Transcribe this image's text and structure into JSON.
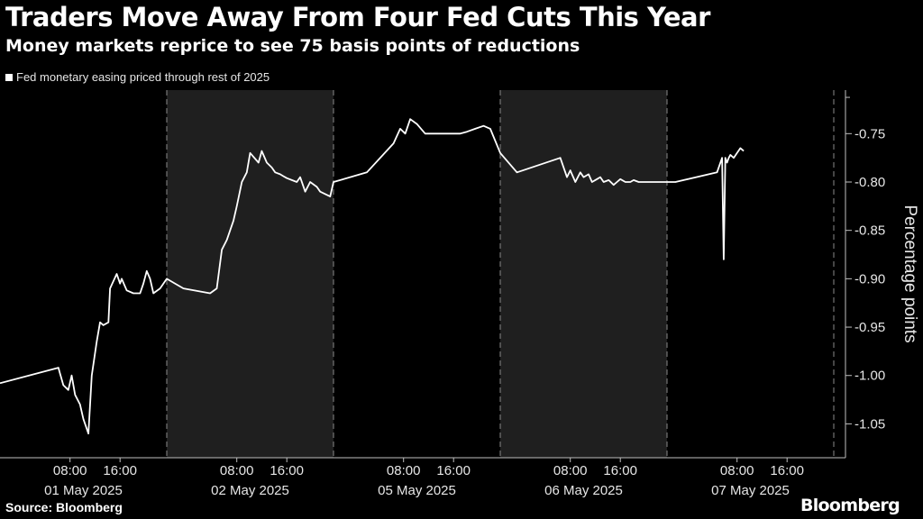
{
  "header": {
    "title": "Traders Move Away From Four Fed Cuts This Year",
    "subtitle": "Money markets reprice to see 75 basis points of reductions"
  },
  "footer": {
    "source": "Source: Bloomberg",
    "brand": "Bloomberg"
  },
  "colors": {
    "background": "#000000",
    "line": "#ffffff",
    "shade": "#1f1f1f"
  },
  "chart_data": {
    "type": "line",
    "title": "Traders Move Away From Four Fed Cuts This Year",
    "subtitle": "Money markets reprice to see 75 basis points of reductions",
    "xlabel": "",
    "ylabel": "Percentage points",
    "ylim": [
      -1.085,
      -0.705
    ],
    "y_ticks": [
      -0.75,
      -0.8,
      -0.85,
      -0.9,
      -0.95,
      -1.0,
      -1.05
    ],
    "y_tick_labels": [
      "-0.75",
      "-0.80",
      "-0.85",
      "-0.90",
      "-0.95",
      "-1.00",
      "-1.05"
    ],
    "y_axis_side": "right",
    "grid": "vertical dashed",
    "legend_position": "top-left",
    "day_labels": [
      "01 May 2025",
      "02 May 2025",
      "05 May 2025",
      "06 May 2025",
      "07 May 2025"
    ],
    "hour_labels": [
      "08:00",
      "16:00"
    ],
    "shaded_days": [
      "02 May 2025",
      "06 May 2025"
    ],
    "series": [
      {
        "name": "Fed monetary easing priced through rest of 2025",
        "x": [
          0.0,
          0.35,
          0.36,
          0.38,
          0.41,
          0.43,
          0.45,
          0.48,
          0.5,
          0.53,
          0.55,
          0.58,
          0.6,
          0.62,
          0.65,
          0.66,
          0.7,
          0.72,
          0.73,
          0.76,
          0.8,
          0.82,
          0.84,
          0.86,
          0.88,
          0.9,
          0.92,
          0.96,
          1.0,
          1.1,
          1.26,
          1.3,
          1.33,
          1.36,
          1.4,
          1.42,
          1.45,
          1.48,
          1.5,
          1.55,
          1.57,
          1.6,
          1.63,
          1.65,
          1.68,
          1.7,
          1.72,
          1.75,
          1.78,
          1.8,
          1.83,
          1.86,
          1.9,
          1.92,
          1.98,
          2.0,
          2.2,
          2.36,
          2.4,
          2.43,
          2.46,
          2.5,
          2.55,
          2.58,
          2.6,
          2.62,
          2.65,
          2.67,
          2.7,
          2.72,
          2.76,
          2.8,
          2.85,
          2.9,
          2.94,
          3.0,
          3.1,
          3.36,
          3.4,
          3.42,
          3.45,
          3.48,
          3.5,
          3.53,
          3.55,
          3.58,
          3.6,
          3.62,
          3.65,
          3.68,
          3.7,
          3.72,
          3.75,
          3.78,
          3.8,
          3.83,
          3.85,
          3.88,
          3.9,
          3.93,
          3.95,
          3.98,
          4.0,
          4.05,
          4.3,
          4.33,
          4.34,
          4.35,
          4.36,
          4.37,
          4.38,
          4.4,
          4.42,
          4.44,
          4.46
        ],
        "y": [
          -1.008,
          -0.992,
          -0.998,
          -1.01,
          -1.015,
          -1.0,
          -1.02,
          -1.03,
          -1.045,
          -1.06,
          -1.0,
          -0.965,
          -0.945,
          -0.948,
          -0.945,
          -0.91,
          -0.895,
          -0.905,
          -0.9,
          -0.912,
          -0.915,
          -0.915,
          -0.915,
          -0.905,
          -0.892,
          -0.9,
          -0.915,
          -0.91,
          -0.9,
          -0.91,
          -0.915,
          -0.91,
          -0.87,
          -0.86,
          -0.84,
          -0.825,
          -0.8,
          -0.79,
          -0.77,
          -0.78,
          -0.768,
          -0.78,
          -0.785,
          -0.79,
          -0.792,
          -0.794,
          -0.796,
          -0.798,
          -0.8,
          -0.795,
          -0.81,
          -0.8,
          -0.805,
          -0.81,
          -0.815,
          -0.8,
          -0.79,
          -0.76,
          -0.745,
          -0.75,
          -0.735,
          -0.74,
          -0.75,
          -0.75,
          -0.75,
          -0.75,
          -0.75,
          -0.75,
          -0.75,
          -0.75,
          -0.75,
          -0.748,
          -0.745,
          -0.742,
          -0.745,
          -0.77,
          -0.79,
          -0.775,
          -0.795,
          -0.788,
          -0.8,
          -0.79,
          -0.795,
          -0.792,
          -0.8,
          -0.797,
          -0.795,
          -0.8,
          -0.798,
          -0.803,
          -0.8,
          -0.797,
          -0.8,
          -0.8,
          -0.798,
          -0.8,
          -0.8,
          -0.8,
          -0.8,
          -0.8,
          -0.8,
          -0.8,
          -0.8,
          -0.8,
          -0.79,
          -0.775,
          -0.88,
          -0.775,
          -0.78,
          -0.775,
          -0.772,
          -0.775,
          -0.77,
          -0.765,
          -0.768
        ]
      }
    ]
  }
}
